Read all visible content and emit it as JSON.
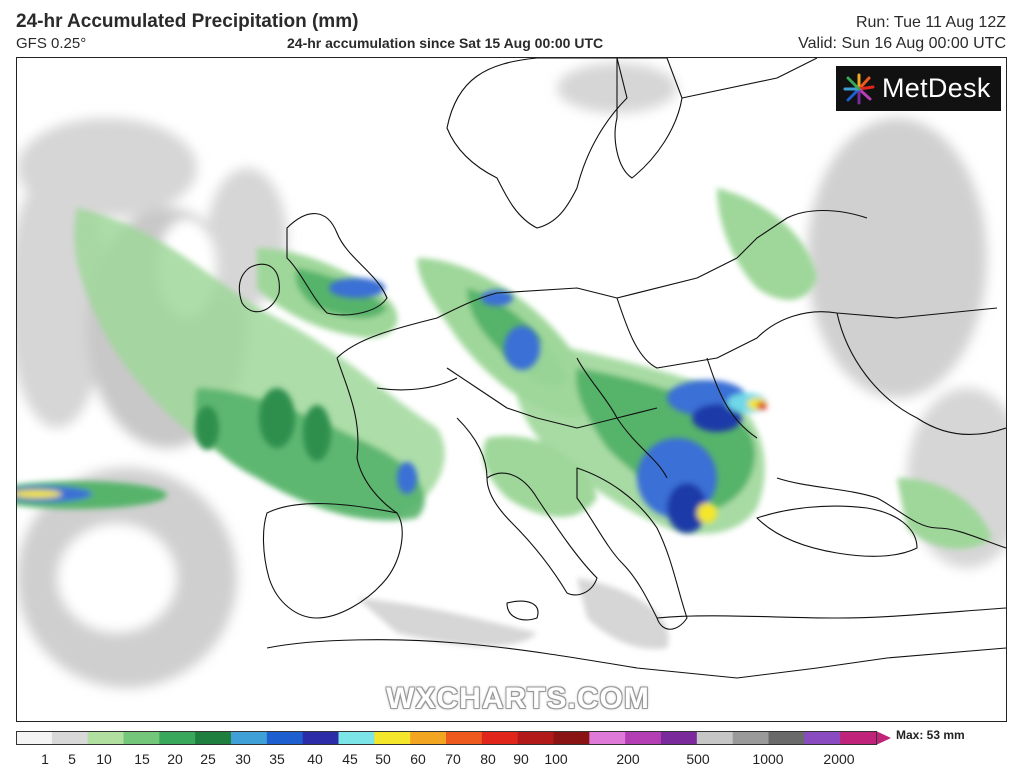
{
  "header": {
    "title": "24-hr Accumulated Precipitation (mm)",
    "model": "GFS 0.25°",
    "accumulation": "24-hr accumulation since Sat 15 Aug 00:00 UTC",
    "run": "Run: Tue 11 Aug 12Z",
    "valid": "Valid: Sun 16 Aug 00:00 UTC"
  },
  "logo": {
    "name": "MetDesk"
  },
  "watermark": "WXCHARTS.COM",
  "legend": {
    "ticks": [
      "1",
      "5",
      "10",
      "15",
      "20",
      "25",
      "30",
      "35",
      "40",
      "45",
      "50",
      "60",
      "70",
      "80",
      "90",
      "100",
      "200",
      "500",
      "1000",
      "2000"
    ],
    "colors": [
      "#f4f4f4",
      "#d8d8d8",
      "#b0dfa0",
      "#74c77a",
      "#3aa85a",
      "#1f7f3e",
      "#3fa0d8",
      "#1e5fd0",
      "#2c2ca8",
      "#7be5e8",
      "#f4e62a",
      "#f2a521",
      "#ee5a1e",
      "#e0251b",
      "#b21a1a",
      "#8a1414",
      "#e07ad8",
      "#b43fb4",
      "#7a2a9a",
      "#c6c6c6",
      "#9a9a9a",
      "#6a6a6a",
      "#8a4ac0",
      "#c0237a"
    ],
    "max_label": "Max: 53 mm"
  },
  "map": {
    "title": "Europe precipitation field",
    "colors": {
      "land_outline": "#111111",
      "light_precip": "#dcdcdc",
      "grey_precip": "#bdbdbd",
      "green_light": "#9fd79a",
      "green_mid": "#56b46a",
      "green_dark": "#2e8f4d",
      "blue": "#3a6fd6",
      "blue_dark": "#1c3aa8",
      "cyan": "#6fd8e8",
      "yellow": "#f4e62a",
      "red": "#d8261c"
    }
  }
}
